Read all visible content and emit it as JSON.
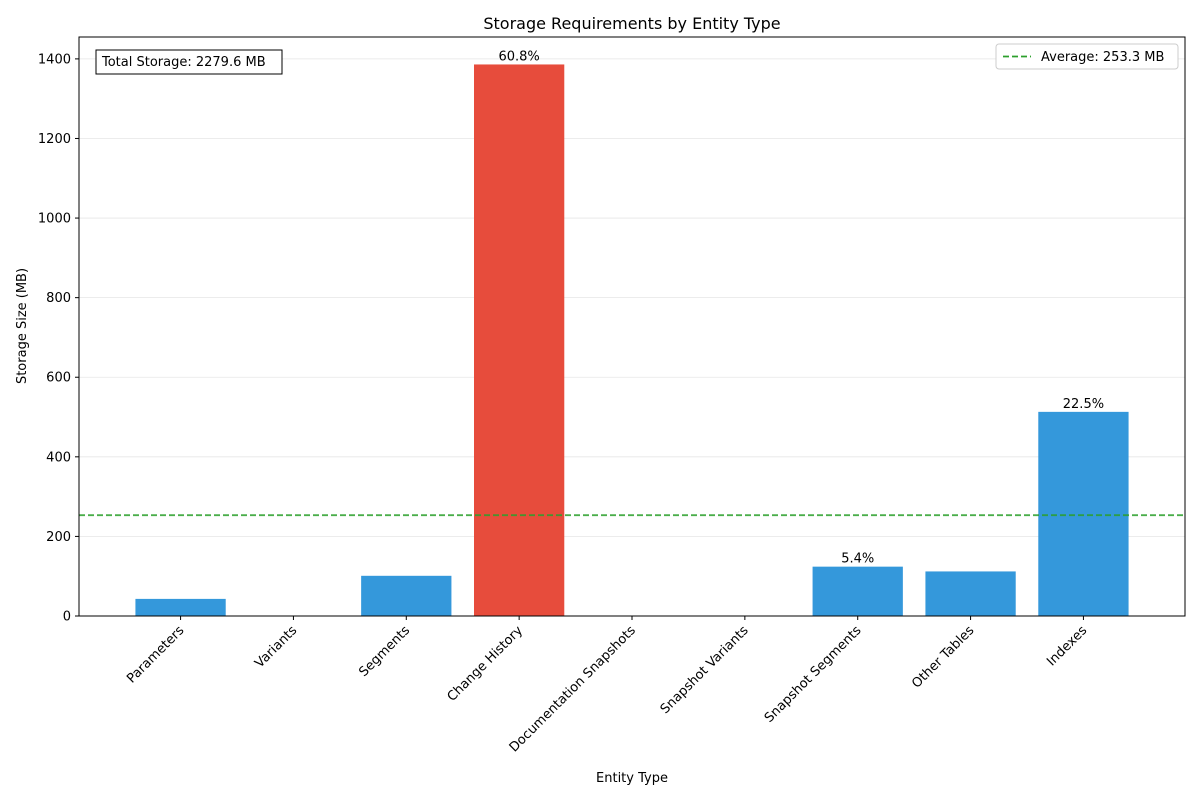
{
  "chart_data": {
    "type": "bar",
    "title": "Storage Requirements by Entity Type",
    "xlabel": "Entity Type",
    "ylabel": "Storage Size (MB)",
    "categories": [
      "Parameters",
      "Variants",
      "Segments",
      "Change History",
      "Documentation Snapshots",
      "Snapshot Variants",
      "Snapshot Segments",
      "Other Tables",
      "Indexes"
    ],
    "values": [
      43,
      0,
      101,
      1386,
      0,
      0,
      124,
      112,
      513
    ],
    "bar_labels": [
      "",
      "",
      "",
      "60.8%",
      "",
      "",
      "5.4%",
      "",
      "22.5%"
    ],
    "highlight_index": 3,
    "ylim": [
      0,
      1455
    ],
    "yticks": [
      0,
      200,
      400,
      600,
      800,
      1000,
      1200,
      1400
    ],
    "grid": "horizontal",
    "average_line": {
      "value": 253.3,
      "label": "Average: 253.3 MB",
      "color": "#2ca02c"
    },
    "legend_position": "top-right",
    "annotation": "Total Storage: 2279.6 MB",
    "colors": {
      "bar": "#3498db",
      "highlight": "#e74c3c",
      "grid": "#e6e6e6",
      "axis": "#000000"
    }
  }
}
